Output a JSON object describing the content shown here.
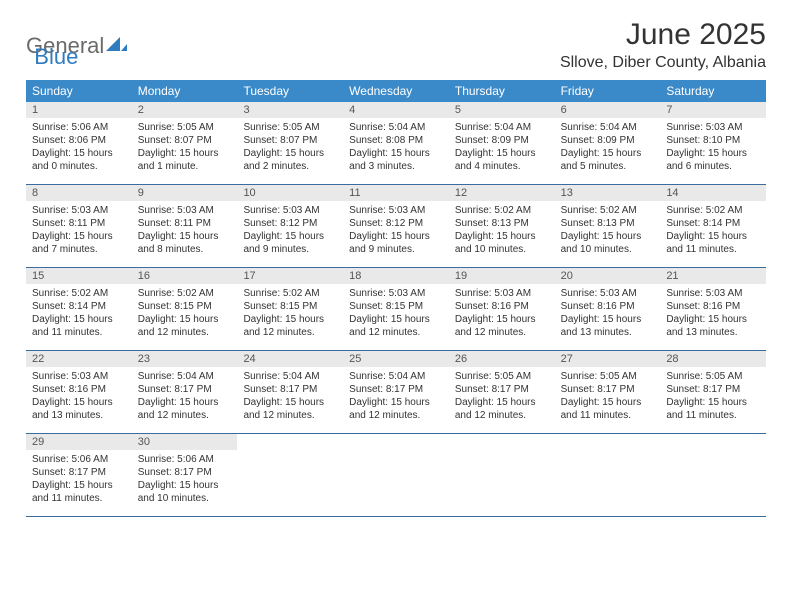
{
  "logo": {
    "part1": "General",
    "part2": "Blue"
  },
  "title": "June 2025",
  "location": "Sllove, Diber County, Albania",
  "colors": {
    "header_bg": "#3a89c9",
    "header_text": "#ffffff",
    "daynum_bg": "#e9e9e9",
    "row_border": "#3a6c9e",
    "logo_gray": "#6a6a6a",
    "logo_blue": "#2f7bbf",
    "text": "#333333"
  },
  "daysOfWeek": [
    "Sunday",
    "Monday",
    "Tuesday",
    "Wednesday",
    "Thursday",
    "Friday",
    "Saturday"
  ],
  "weeks": [
    [
      {
        "n": "1",
        "sr": "5:06 AM",
        "ss": "8:06 PM",
        "dl": "15 hours and 0 minutes."
      },
      {
        "n": "2",
        "sr": "5:05 AM",
        "ss": "8:07 PM",
        "dl": "15 hours and 1 minute."
      },
      {
        "n": "3",
        "sr": "5:05 AM",
        "ss": "8:07 PM",
        "dl": "15 hours and 2 minutes."
      },
      {
        "n": "4",
        "sr": "5:04 AM",
        "ss": "8:08 PM",
        "dl": "15 hours and 3 minutes."
      },
      {
        "n": "5",
        "sr": "5:04 AM",
        "ss": "8:09 PM",
        "dl": "15 hours and 4 minutes."
      },
      {
        "n": "6",
        "sr": "5:04 AM",
        "ss": "8:09 PM",
        "dl": "15 hours and 5 minutes."
      },
      {
        "n": "7",
        "sr": "5:03 AM",
        "ss": "8:10 PM",
        "dl": "15 hours and 6 minutes."
      }
    ],
    [
      {
        "n": "8",
        "sr": "5:03 AM",
        "ss": "8:11 PM",
        "dl": "15 hours and 7 minutes."
      },
      {
        "n": "9",
        "sr": "5:03 AM",
        "ss": "8:11 PM",
        "dl": "15 hours and 8 minutes."
      },
      {
        "n": "10",
        "sr": "5:03 AM",
        "ss": "8:12 PM",
        "dl": "15 hours and 9 minutes."
      },
      {
        "n": "11",
        "sr": "5:03 AM",
        "ss": "8:12 PM",
        "dl": "15 hours and 9 minutes."
      },
      {
        "n": "12",
        "sr": "5:02 AM",
        "ss": "8:13 PM",
        "dl": "15 hours and 10 minutes."
      },
      {
        "n": "13",
        "sr": "5:02 AM",
        "ss": "8:13 PM",
        "dl": "15 hours and 10 minutes."
      },
      {
        "n": "14",
        "sr": "5:02 AM",
        "ss": "8:14 PM",
        "dl": "15 hours and 11 minutes."
      }
    ],
    [
      {
        "n": "15",
        "sr": "5:02 AM",
        "ss": "8:14 PM",
        "dl": "15 hours and 11 minutes."
      },
      {
        "n": "16",
        "sr": "5:02 AM",
        "ss": "8:15 PM",
        "dl": "15 hours and 12 minutes."
      },
      {
        "n": "17",
        "sr": "5:02 AM",
        "ss": "8:15 PM",
        "dl": "15 hours and 12 minutes."
      },
      {
        "n": "18",
        "sr": "5:03 AM",
        "ss": "8:15 PM",
        "dl": "15 hours and 12 minutes."
      },
      {
        "n": "19",
        "sr": "5:03 AM",
        "ss": "8:16 PM",
        "dl": "15 hours and 12 minutes."
      },
      {
        "n": "20",
        "sr": "5:03 AM",
        "ss": "8:16 PM",
        "dl": "15 hours and 13 minutes."
      },
      {
        "n": "21",
        "sr": "5:03 AM",
        "ss": "8:16 PM",
        "dl": "15 hours and 13 minutes."
      }
    ],
    [
      {
        "n": "22",
        "sr": "5:03 AM",
        "ss": "8:16 PM",
        "dl": "15 hours and 13 minutes."
      },
      {
        "n": "23",
        "sr": "5:04 AM",
        "ss": "8:17 PM",
        "dl": "15 hours and 12 minutes."
      },
      {
        "n": "24",
        "sr": "5:04 AM",
        "ss": "8:17 PM",
        "dl": "15 hours and 12 minutes."
      },
      {
        "n": "25",
        "sr": "5:04 AM",
        "ss": "8:17 PM",
        "dl": "15 hours and 12 minutes."
      },
      {
        "n": "26",
        "sr": "5:05 AM",
        "ss": "8:17 PM",
        "dl": "15 hours and 12 minutes."
      },
      {
        "n": "27",
        "sr": "5:05 AM",
        "ss": "8:17 PM",
        "dl": "15 hours and 11 minutes."
      },
      {
        "n": "28",
        "sr": "5:05 AM",
        "ss": "8:17 PM",
        "dl": "15 hours and 11 minutes."
      }
    ],
    [
      {
        "n": "29",
        "sr": "5:06 AM",
        "ss": "8:17 PM",
        "dl": "15 hours and 11 minutes."
      },
      {
        "n": "30",
        "sr": "5:06 AM",
        "ss": "8:17 PM",
        "dl": "15 hours and 10 minutes."
      },
      null,
      null,
      null,
      null,
      null
    ]
  ],
  "labels": {
    "sunrise": "Sunrise: ",
    "sunset": "Sunset: ",
    "daylight": "Daylight: "
  }
}
